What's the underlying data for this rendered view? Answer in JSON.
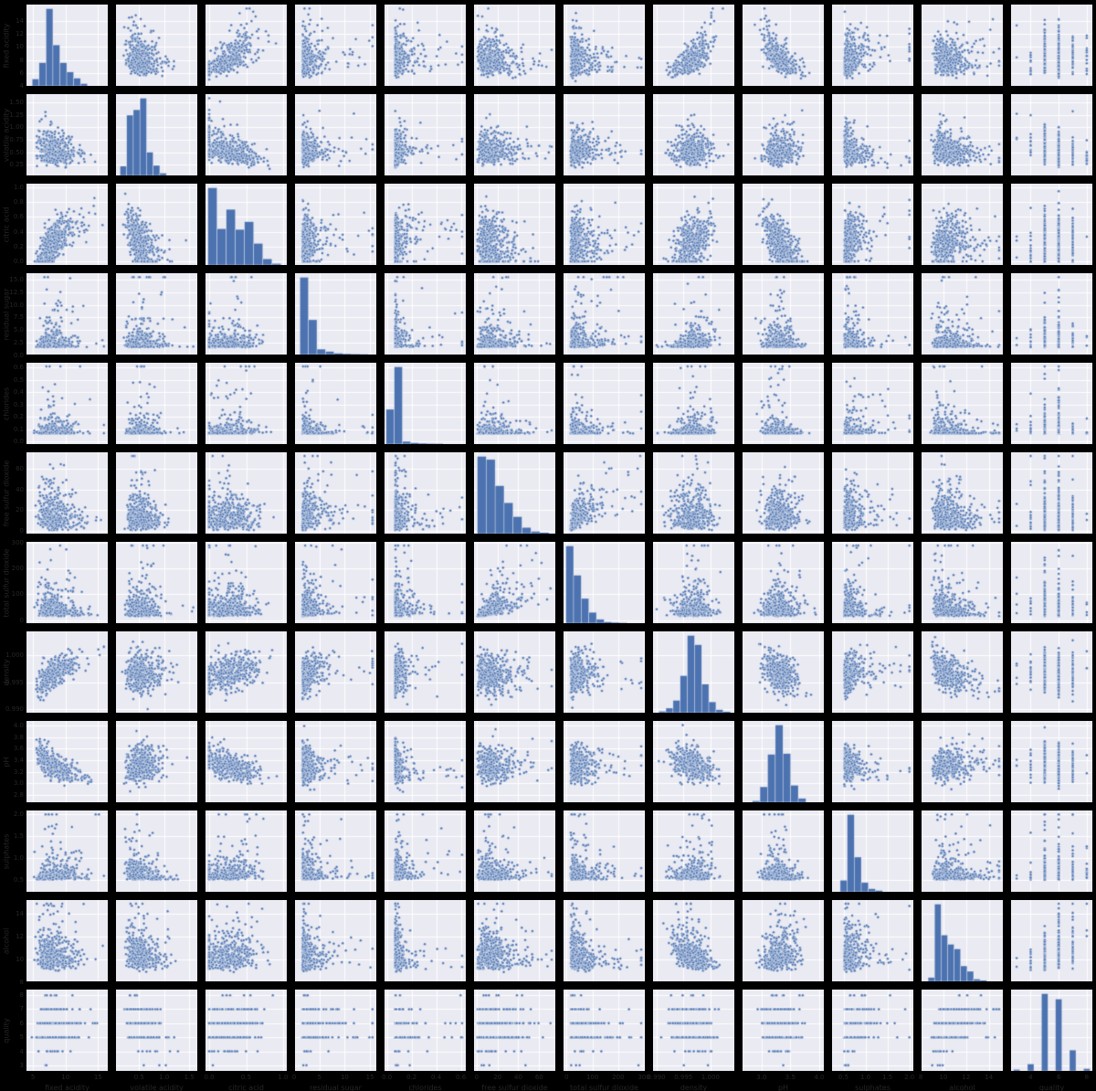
{
  "figure": {
    "background": "#000000",
    "axes_background": "#eaeaf2",
    "gridline_color": "#ffffff",
    "marker_color": "#4c72b0",
    "bar_color": "#4c72b0",
    "text_color": "#262626"
  },
  "chart_data": {
    "type": "scatter",
    "subtype": "pairplot-matrix",
    "title": "",
    "dataset": "red wine quality",
    "rows": 12,
    "cols": 12,
    "diagonal": "histogram",
    "grid": true,
    "legend": false,
    "points_per_panel": 420,
    "seed": 42,
    "variables": [
      {
        "key": "fixed_acidity",
        "label": "fixed acidity",
        "lim": [
          4.0,
          16.5
        ],
        "mu": 8.1,
        "sd": 1.55,
        "skew": 0.35,
        "clip": [
          4.6,
          15.9
        ],
        "yticks": {
          "values": [
            4,
            6,
            8,
            10,
            12,
            14
          ],
          "labels": [
            "4",
            "6",
            "8",
            "10",
            "12",
            "14"
          ]
        },
        "xticks": {
          "values": [
            5,
            10,
            15
          ],
          "labels": [
            "5",
            "10",
            "15"
          ]
        },
        "hist": {
          "x0": 0.07,
          "x1": 0.75,
          "heights": [
            0.09,
            0.3,
            1.0,
            0.53,
            0.3,
            0.18,
            0.1,
            0.03
          ]
        }
      },
      {
        "key": "volatile_acidity",
        "label": "volatile acidity",
        "lim": [
          0.04,
          1.66
        ],
        "mu": 0.52,
        "sd": 0.17,
        "skew": 0.35,
        "clip": [
          0.12,
          1.58
        ],
        "yticks": {
          "values": [
            0.25,
            0.5,
            0.75,
            1.0,
            1.25,
            1.5
          ],
          "labels": [
            "0.25",
            "0.50",
            "0.75",
            "1.00",
            "1.25",
            "1.50"
          ]
        },
        "xticks": {
          "values": [
            0.5,
            1.0,
            1.5
          ],
          "labels": [
            "0.5",
            "1.0",
            "1.5"
          ]
        },
        "hist": {
          "x0": 0.05,
          "x1": 0.62,
          "heights": [
            0.12,
            0.78,
            0.85,
            1.0,
            0.3,
            0.13,
            0.03
          ]
        }
      },
      {
        "key": "citric_acid",
        "label": "citric acid",
        "lim": [
          -0.05,
          1.05
        ],
        "mu": 0.26,
        "sd": 0.195,
        "skew": 0.0,
        "clip": [
          0.0,
          1.0
        ],
        "yticks": {
          "values": [
            0.0,
            0.2,
            0.4,
            0.6,
            0.8,
            1.0
          ],
          "labels": [
            "0.0",
            "0.2",
            "0.4",
            "0.6",
            "0.8",
            "1.0"
          ]
        },
        "xticks": {
          "values": [
            0.0,
            0.5,
            1.0
          ],
          "labels": [
            "0.0",
            "0.5",
            "1.0"
          ]
        },
        "hist": {
          "x0": 0.03,
          "x1": 0.93,
          "heights": [
            1.0,
            0.47,
            0.72,
            0.46,
            0.56,
            0.28,
            0.08,
            0.02
          ]
        }
      },
      {
        "key": "residual_sugar",
        "label": "residual sugar",
        "lim": [
          0.15,
          16.25
        ],
        "mu": 2.3,
        "sd": 0.9,
        "skew": 1.3,
        "clip": [
          0.9,
          15.5
        ],
        "yticks": {
          "values": [
            0.0,
            2.5,
            5.0,
            7.5,
            10.0,
            12.5,
            15.0
          ],
          "labels": [
            "0.0",
            "2.5",
            "5.0",
            "7.5",
            "10.0",
            "12.5",
            "15.0"
          ]
        },
        "xticks": {
          "values": [
            0,
            5,
            10,
            15
          ],
          "labels": [
            "0",
            "5",
            "10",
            "15"
          ]
        },
        "hist": {
          "x0": 0.06,
          "x1": 0.9,
          "heights": [
            1.0,
            0.45,
            0.07,
            0.04,
            0.015,
            0.008,
            0.005,
            0.003
          ]
        }
      },
      {
        "key": "chlorides",
        "label": "chlorides",
        "lim": [
          -0.02,
          0.64
        ],
        "mu": 0.079,
        "sd": 0.02,
        "skew": 1.6,
        "clip": [
          0.034,
          0.61
        ],
        "yticks": {
          "values": [
            0.0,
            0.1,
            0.2,
            0.3,
            0.4,
            0.5,
            0.6
          ],
          "labels": [
            "0.0",
            "0.1",
            "0.2",
            "0.3",
            "0.4",
            "0.5",
            "0.6"
          ]
        },
        "xticks": {
          "values": [
            0.0,
            0.2,
            0.4,
            0.6
          ],
          "labels": [
            "0.0",
            "0.2",
            "0.4",
            "0.6"
          ]
        },
        "hist": {
          "x0": 0.02,
          "x1": 0.72,
          "heights": [
            0.45,
            1.0,
            0.035,
            0.015,
            0.008,
            0.005,
            0.004
          ]
        }
      },
      {
        "key": "free_sulfur_dioxide",
        "label": "free sulfur dioxide",
        "lim": [
          -2.5,
          75.5
        ],
        "mu": 14,
        "sd": 9.5,
        "skew": 0.55,
        "clip": [
          1,
          72
        ],
        "yticks": {
          "values": [
            0,
            20,
            40,
            60
          ],
          "labels": [
            "0",
            "20",
            "40",
            "60"
          ]
        },
        "xticks": {
          "values": [
            0,
            20,
            40,
            60
          ],
          "labels": [
            "0",
            "20",
            "40",
            "60"
          ]
        },
        "hist": {
          "x0": 0.04,
          "x1": 0.92,
          "heights": [
            1.0,
            0.96,
            0.62,
            0.4,
            0.22,
            0.08,
            0.03,
            0.012
          ]
        }
      },
      {
        "key": "total_sulfur_dioxide",
        "label": "total sulfur dioxide",
        "lim": [
          -12,
          303
        ],
        "mu": 40,
        "sd": 26,
        "skew": 1.0,
        "clip": [
          6,
          289
        ],
        "yticks": {
          "values": [
            0,
            100,
            200,
            300
          ],
          "labels": [
            "0",
            "100",
            "200",
            "300"
          ]
        },
        "xticks": {
          "values": [
            0,
            100,
            200,
            300
          ],
          "labels": [
            "0",
            "100",
            "200",
            "300"
          ]
        },
        "hist": {
          "x0": 0.03,
          "x1": 0.78,
          "heights": [
            1.0,
            0.62,
            0.32,
            0.14,
            0.05,
            0.015,
            0.008,
            0.004
          ]
        }
      },
      {
        "key": "density",
        "label": "density",
        "lim": [
          0.9894,
          1.0044
        ],
        "mu": 0.9967,
        "sd": 0.00185,
        "skew": 0.0,
        "clip": [
          0.99007,
          1.00369
        ],
        "yticks": {
          "values": [
            0.99,
            0.995,
            1.0
          ],
          "labels": [
            "0.990",
            "0.995",
            "1.000"
          ]
        },
        "xticks": {
          "values": [
            0.99,
            0.995,
            1.0
          ],
          "labels": [
            "0.990",
            "0.995",
            "1.000"
          ]
        },
        "hist": {
          "x0": 0.07,
          "x1": 0.95,
          "heights": [
            0.02,
            0.06,
            0.16,
            0.48,
            1.0,
            0.88,
            0.37,
            0.14,
            0.04,
            0.012
          ]
        }
      },
      {
        "key": "pH",
        "label": "pH",
        "lim": [
          2.67,
          4.08
        ],
        "mu": 3.31,
        "sd": 0.152,
        "skew": 0.1,
        "clip": [
          2.74,
          4.01
        ],
        "yticks": {
          "values": [
            2.8,
            3.0,
            3.2,
            3.4,
            3.6,
            3.8,
            4.0
          ],
          "labels": [
            "2.8",
            "3.0",
            "3.2",
            "3.4",
            "3.6",
            "3.8",
            "4.0"
          ]
        },
        "xticks": {
          "values": [
            3.0,
            3.5,
            4.0
          ],
          "labels": [
            "3.0",
            "3.5",
            "4.0"
          ]
        },
        "hist": {
          "x0": 0.12,
          "x1": 0.78,
          "heights": [
            0.02,
            0.2,
            0.62,
            1.0,
            0.63,
            0.22,
            0.05
          ]
        }
      },
      {
        "key": "sulphates",
        "label": "sulphates",
        "lim": [
          0.24,
          2.09
        ],
        "mu": 0.62,
        "sd": 0.115,
        "skew": 1.1,
        "clip": [
          0.33,
          2.0
        ],
        "yticks": {
          "values": [
            0.5,
            1.0,
            1.5,
            2.0
          ],
          "labels": [
            "0.5",
            "1.0",
            "1.5",
            "2.0"
          ]
        },
        "xticks": {
          "values": [
            0.5,
            1.0,
            1.5,
            2.0
          ],
          "labels": [
            "0.5",
            "1.0",
            "1.5",
            "2.0"
          ]
        },
        "hist": {
          "x0": 0.1,
          "x1": 0.62,
          "heights": [
            0.15,
            1.0,
            0.45,
            0.12,
            0.04,
            0.015
          ]
        }
      },
      {
        "key": "alcohol",
        "label": "alcohol",
        "lim": [
          8.07,
          15.23
        ],
        "mu": 10.35,
        "sd": 0.95,
        "skew": 0.55,
        "clip": [
          8.4,
          14.9
        ],
        "yticks": {
          "values": [
            8,
            10,
            12,
            14
          ],
          "labels": [
            "8",
            "10",
            "12",
            "14"
          ]
        },
        "xticks": {
          "values": [
            8,
            10,
            12,
            14
          ],
          "labels": [
            "8",
            "10",
            "12",
            "14"
          ]
        },
        "hist": {
          "x0": 0.08,
          "x1": 0.8,
          "heights": [
            0.05,
            1.0,
            0.6,
            0.48,
            0.42,
            0.2,
            0.13,
            0.03,
            0.012
          ]
        }
      },
      {
        "key": "quality",
        "label": "quality",
        "lim": [
          2.6,
          8.4
        ],
        "discrete": true,
        "levels": [
          3,
          4,
          5,
          6,
          7,
          8
        ],
        "thresholds": [
          -2.51,
          -1.76,
          -0.088,
          1.1,
          2.26
        ],
        "yticks": {
          "values": [
            3,
            4,
            5,
            6,
            7,
            8
          ],
          "labels": [
            "3",
            "4",
            "5",
            "6",
            "7",
            "8"
          ]
        },
        "xticks": {
          "values": [
            4,
            6,
            8
          ],
          "labels": [
            "4",
            "6",
            "8"
          ]
        },
        "hist": {
          "discrete": true,
          "heights": [
            0.02,
            0.09,
            1.0,
            0.93,
            0.27,
            0.03
          ]
        }
      }
    ],
    "correlations": [
      [
        1,
        -0.26,
        0.67,
        0.11,
        0.09,
        -0.15,
        -0.11,
        0.67,
        -0.68,
        0.18,
        -0.06,
        0.12
      ],
      [
        -0.26,
        1,
        -0.55,
        0,
        0.06,
        -0.01,
        0.08,
        0.02,
        0.23,
        -0.26,
        -0.2,
        -0.39
      ],
      [
        0.67,
        -0.55,
        1,
        0.14,
        0.2,
        -0.06,
        0.04,
        0.36,
        -0.54,
        0.31,
        0.11,
        0.23
      ],
      [
        0.11,
        0,
        0.14,
        1,
        0.06,
        0.19,
        0.2,
        0.36,
        -0.09,
        0.01,
        0.04,
        0.01
      ],
      [
        0.09,
        0.06,
        0.2,
        0.06,
        1,
        0.01,
        0.05,
        0.2,
        -0.27,
        0.37,
        -0.22,
        -0.13
      ],
      [
        -0.15,
        -0.01,
        -0.06,
        0.19,
        0.01,
        1,
        0.67,
        -0.02,
        0.07,
        0.05,
        -0.07,
        -0.05
      ],
      [
        -0.11,
        0.08,
        0.04,
        0.2,
        0.05,
        0.67,
        1,
        0.07,
        -0.07,
        0.04,
        -0.21,
        -0.19
      ],
      [
        0.67,
        0.02,
        0.36,
        0.36,
        0.2,
        -0.02,
        0.07,
        1,
        -0.34,
        0.15,
        -0.5,
        -0.17
      ],
      [
        -0.68,
        0.23,
        -0.54,
        -0.09,
        -0.27,
        0.07,
        -0.07,
        -0.34,
        1,
        -0.2,
        0.21,
        -0.06
      ],
      [
        0.18,
        -0.26,
        0.31,
        0.01,
        0.37,
        0.05,
        0.04,
        0.15,
        -0.2,
        1,
        0.09,
        0.25
      ],
      [
        -0.06,
        -0.2,
        0.11,
        0.04,
        -0.22,
        -0.07,
        -0.21,
        -0.5,
        0.21,
        0.09,
        1,
        0.48
      ],
      [
        0.12,
        -0.39,
        0.23,
        0.01,
        -0.13,
        -0.05,
        -0.19,
        -0.17,
        -0.06,
        0.25,
        0.48,
        1
      ]
    ]
  }
}
